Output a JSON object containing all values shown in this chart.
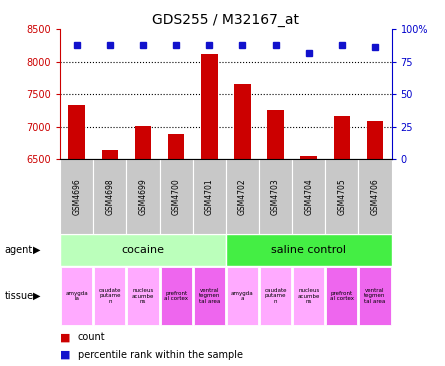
{
  "title": "GDS255 / M32167_at",
  "samples": [
    "GSM4696",
    "GSM4698",
    "GSM4699",
    "GSM4700",
    "GSM4701",
    "GSM4702",
    "GSM4703",
    "GSM4704",
    "GSM4705",
    "GSM4706"
  ],
  "counts": [
    7330,
    6640,
    7010,
    6890,
    8120,
    7660,
    7250,
    6550,
    7170,
    7090
  ],
  "percentiles": [
    88,
    88,
    88,
    88,
    88,
    88,
    88,
    82,
    88,
    86
  ],
  "ylim_left": [
    6500,
    8500
  ],
  "ylim_right": [
    0,
    100
  ],
  "yticks_left": [
    6500,
    7000,
    7500,
    8000,
    8500
  ],
  "yticks_right": [
    0,
    25,
    50,
    75,
    100
  ],
  "bar_color": "#cc0000",
  "dot_color": "#1111cc",
  "agent_groups": [
    {
      "label": "cocaine",
      "start": 0,
      "end": 5,
      "color": "#bbffbb"
    },
    {
      "label": "saline control",
      "start": 5,
      "end": 10,
      "color": "#44ee44"
    }
  ],
  "tissue_groups": [
    {
      "label": "amygda\nla",
      "start": 0,
      "end": 1,
      "color": "#ffaaff"
    },
    {
      "label": "caudate\nputame\nn",
      "start": 1,
      "end": 2,
      "color": "#ffaaff"
    },
    {
      "label": "nucleus\nacumbe\nns",
      "start": 2,
      "end": 3,
      "color": "#ffaaff"
    },
    {
      "label": "prefront\nal cortex",
      "start": 3,
      "end": 4,
      "color": "#ee66ee"
    },
    {
      "label": "ventral\ntegmen\ntal area",
      "start": 4,
      "end": 5,
      "color": "#ee66ee"
    },
    {
      "label": "amygda\na",
      "start": 5,
      "end": 6,
      "color": "#ffaaff"
    },
    {
      "label": "caudate\nputame\nn",
      "start": 6,
      "end": 7,
      "color": "#ffaaff"
    },
    {
      "label": "nucleus\nacumbe\nns",
      "start": 7,
      "end": 8,
      "color": "#ffaaff"
    },
    {
      "label": "prefront\nal cortex",
      "start": 8,
      "end": 9,
      "color": "#ee66ee"
    },
    {
      "label": "ventral\ntegmen\ntal area",
      "start": 9,
      "end": 10,
      "color": "#ee66ee"
    }
  ],
  "bg_color": "#ffffff",
  "sample_bg_color": "#c8c8c8",
  "left_label_color": "#cc0000",
  "right_label_color": "#0000cc",
  "legend_items": [
    {
      "color": "#cc0000",
      "label": "count"
    },
    {
      "color": "#1111cc",
      "label": "percentile rank within the sample"
    }
  ]
}
